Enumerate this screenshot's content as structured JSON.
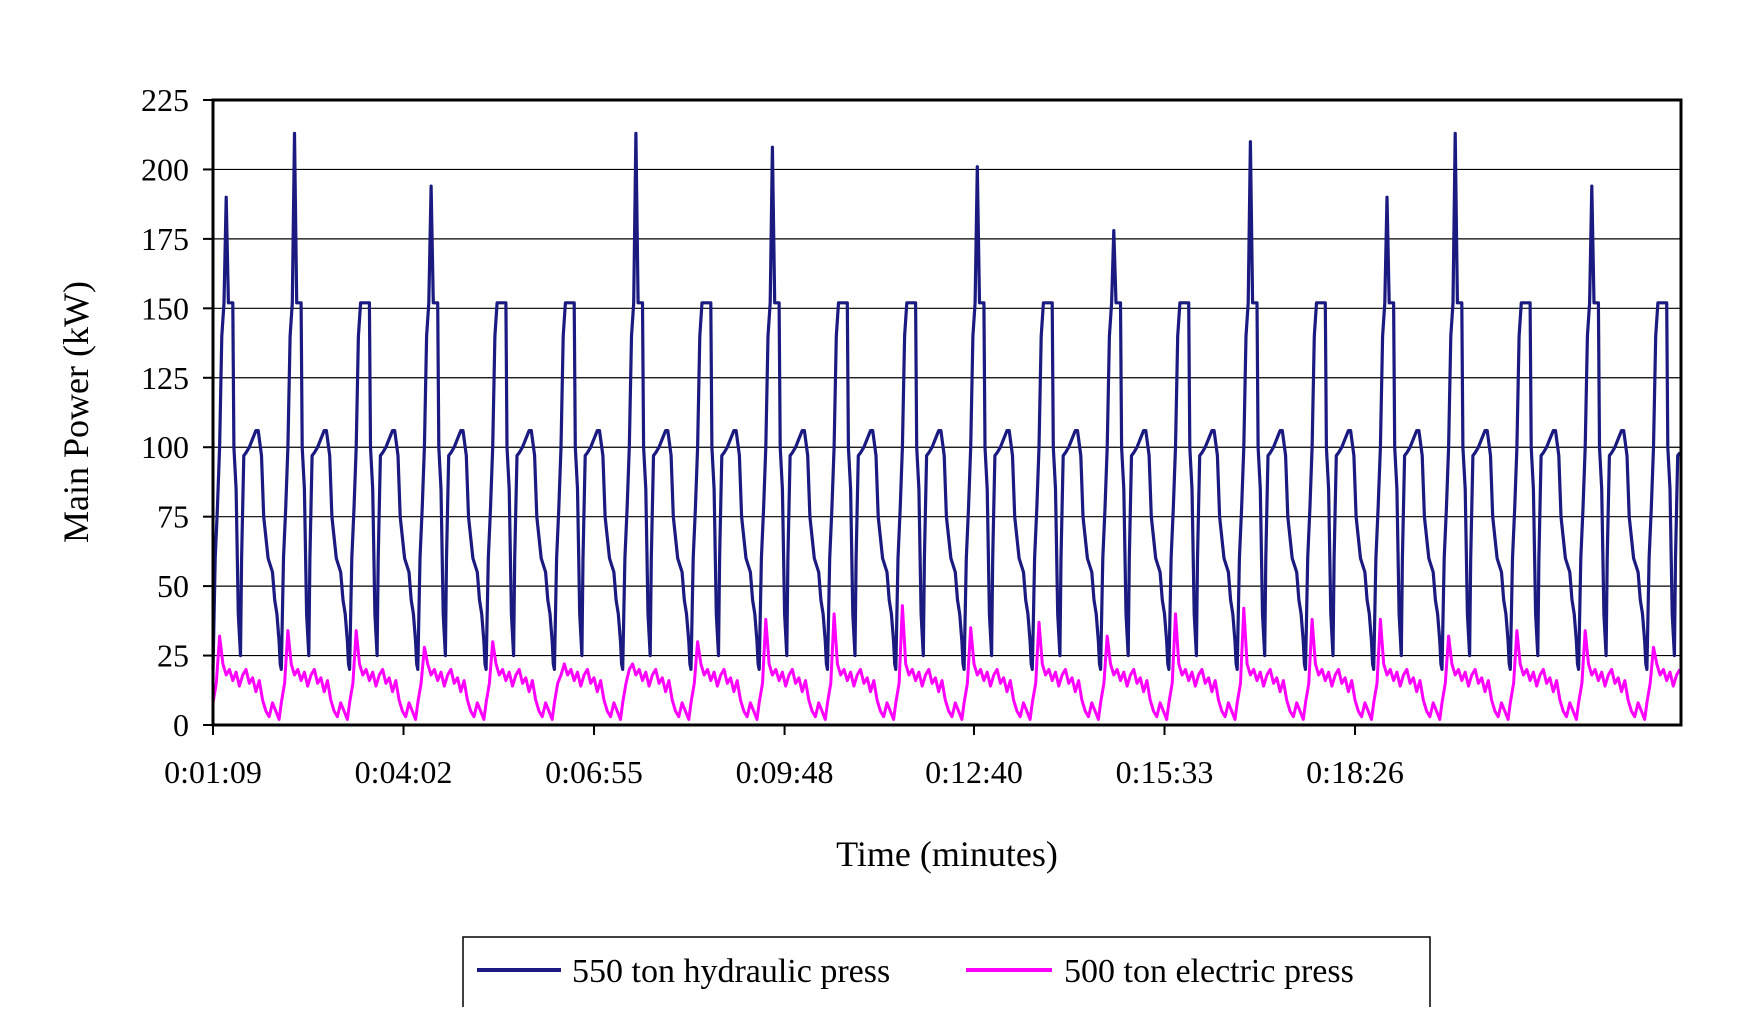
{
  "colors": {
    "hydraulic": "#1a1a80",
    "electric": "#ff00ff",
    "grid": "#000000",
    "background": "#ffffff"
  },
  "chart_data": {
    "type": "line",
    "title": "",
    "xlabel": "Time (minutes)",
    "ylabel": "Main Power (kW)",
    "ylim": [
      0,
      225
    ],
    "yticks": [
      0,
      25,
      50,
      75,
      100,
      125,
      150,
      175,
      200,
      225
    ],
    "ytick_labels": [
      "0",
      "25",
      "50",
      "75",
      "100",
      "125",
      "150",
      "175",
      "200",
      "225"
    ],
    "xlim_seconds": [
      69,
      1402
    ],
    "x_unit": "time h:mm:ss",
    "xtick_labels": [
      "0:01:09",
      "0:04:02",
      "0:06:55",
      "0:09:48",
      "0:12:40",
      "0:15:33",
      "0:18:26"
    ],
    "xtick_seconds": [
      69,
      242,
      415,
      588,
      760,
      933,
      1106
    ],
    "grid": "horizontal",
    "legend": "bottom",
    "series": [
      {
        "name": "550 ton hydraulic press",
        "color": "#1a1a80",
        "cycle_period_seconds": 62,
        "peaks_kw": [
          190,
          213,
          152,
          194,
          152,
          152,
          213,
          152,
          208,
          152,
          152,
          201,
          152,
          178,
          152,
          210,
          152
        ],
        "cycle_shape_seconds": [
          0,
          1,
          2,
          4,
          6,
          8,
          10,
          12,
          14,
          15,
          16,
          17,
          18,
          19,
          21,
          23,
          25,
          26,
          28,
          30,
          33,
          36,
          39,
          41,
          44,
          46,
          50,
          54,
          56,
          58,
          60,
          61
        ],
        "cycle_shape_kw": [
          20,
          40,
          60,
          78,
          100,
          140,
          152,
          175,
          152,
          152,
          152,
          152,
          152,
          100,
          85,
          40,
          25,
          60,
          97,
          98,
          100,
          103,
          106,
          106,
          97,
          75,
          60,
          55,
          45,
          40,
          30,
          22
        ]
      },
      {
        "name": "500 ton electric press",
        "color": "#ff00ff",
        "cycle_period_seconds": 62,
        "peaks_kw": [
          32,
          34,
          34,
          28,
          30,
          18,
          20,
          30,
          38,
          40,
          43,
          35,
          37,
          32,
          40,
          42,
          38,
          38
        ],
        "cycle_shape_seconds": [
          0,
          3,
          6,
          9,
          12,
          15,
          18,
          21,
          24,
          27,
          30,
          33,
          36,
          39,
          42,
          45,
          48,
          51,
          54,
          57,
          60
        ],
        "cycle_shape_kw": [
          8,
          15,
          28,
          22,
          18,
          20,
          16,
          19,
          14,
          18,
          20,
          15,
          17,
          12,
          16,
          9,
          5,
          3,
          8,
          5,
          2
        ]
      }
    ]
  }
}
